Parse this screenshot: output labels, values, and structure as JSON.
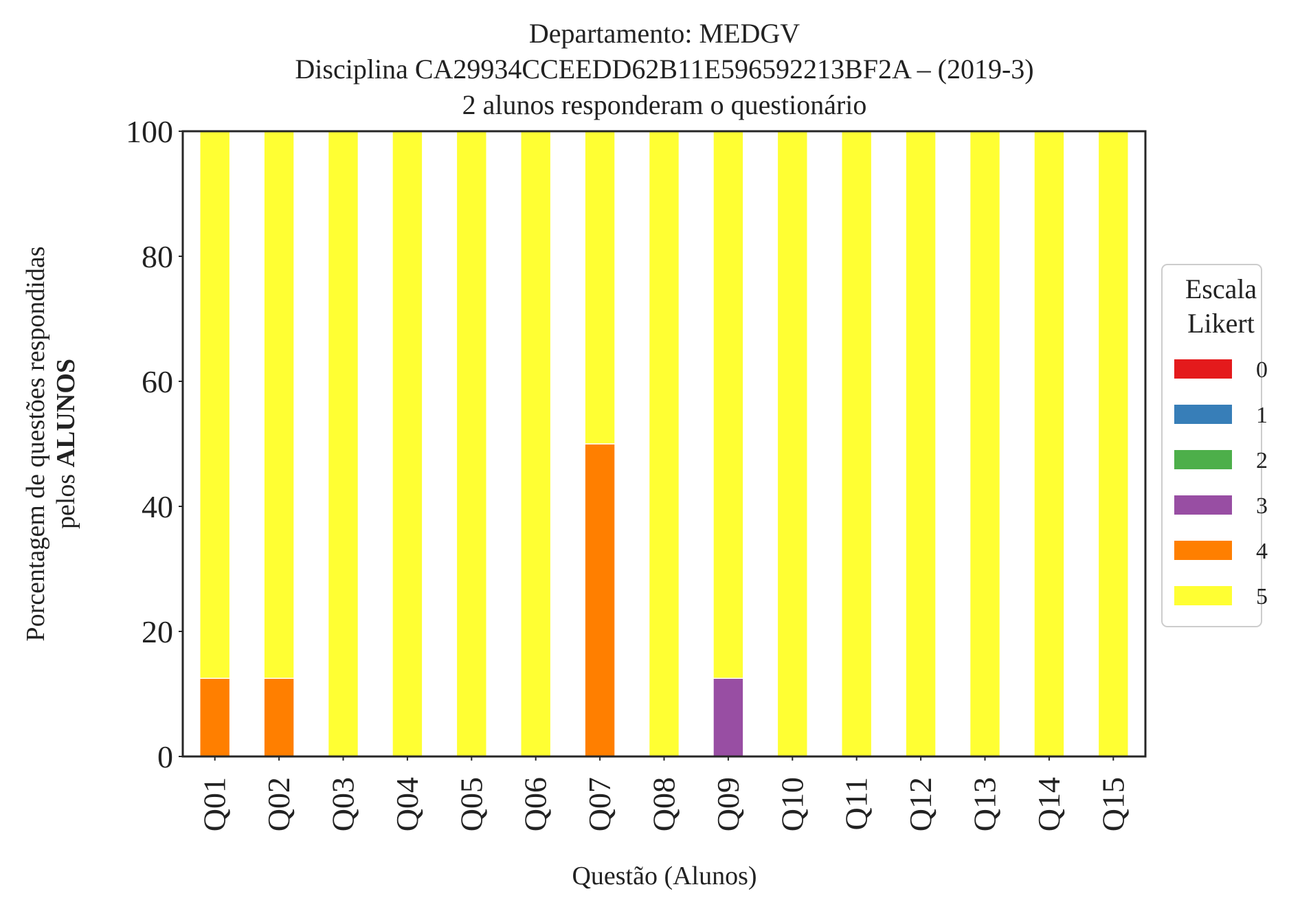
{
  "chart_data": {
    "type": "bar",
    "stacked": true,
    "title": [
      "Departamento: MEDGV",
      "Disciplina CA29934CCEEDD62B11E596592213BF2A – (2019-3)",
      "2 alunos responderam o questionário"
    ],
    "xlabel": "Questão (Alunos)",
    "ylabel_line1": "Porcentagem de questões respondidas",
    "ylabel_line2_prefix": "pelos ",
    "ylabel_line2_bold": "ALUNOS",
    "ylim": [
      0,
      100
    ],
    "yticks": [
      0,
      20,
      40,
      60,
      80,
      100
    ],
    "grid": false,
    "legend_position": "right",
    "legend_title": [
      "Escala",
      "Likert"
    ],
    "categories": [
      "Q01",
      "Q02",
      "Q03",
      "Q04",
      "Q05",
      "Q06",
      "Q07",
      "Q08",
      "Q09",
      "Q10",
      "Q11",
      "Q12",
      "Q13",
      "Q14",
      "Q15"
    ],
    "series": [
      {
        "name": "0",
        "color": "#e41a1c",
        "values": [
          0,
          0,
          0,
          0,
          0,
          0,
          0,
          0,
          0,
          0,
          0,
          0,
          0,
          0,
          0
        ]
      },
      {
        "name": "1",
        "color": "#377eb8",
        "values": [
          0,
          0,
          0,
          0,
          0,
          0,
          0,
          0,
          0,
          0,
          0,
          0,
          0,
          0,
          0
        ]
      },
      {
        "name": "2",
        "color": "#4daf4a",
        "values": [
          0,
          0,
          0,
          0,
          0,
          0,
          0,
          0,
          0,
          0,
          0,
          0,
          0,
          0,
          0
        ]
      },
      {
        "name": "3",
        "color": "#984ea3",
        "values": [
          0,
          0,
          0,
          0,
          0,
          0,
          0,
          0,
          12.5,
          0,
          0,
          0,
          0,
          0,
          0
        ]
      },
      {
        "name": "4",
        "color": "#ff7f00",
        "values": [
          12.5,
          12.5,
          0,
          0,
          0,
          0,
          50,
          0,
          0,
          0,
          0,
          0,
          0,
          0,
          0
        ]
      },
      {
        "name": "5",
        "color": "#ffff33",
        "values": [
          87.5,
          87.5,
          100,
          100,
          100,
          100,
          50,
          100,
          87.5,
          100,
          100,
          100,
          100,
          100,
          100
        ]
      }
    ]
  }
}
